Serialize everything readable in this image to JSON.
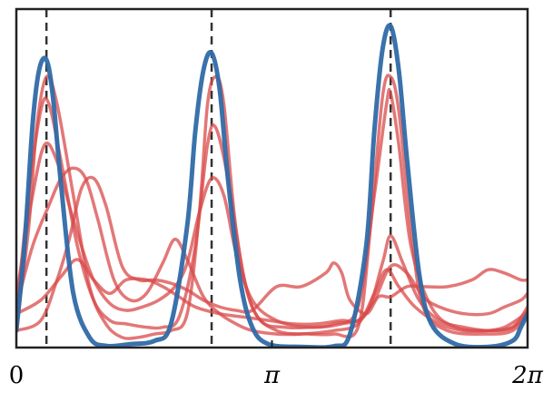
{
  "chart_data": {
    "type": "line",
    "title": "",
    "xlabel": "",
    "ylabel": "",
    "xlim": [
      0,
      6.2832
    ],
    "ylim": [
      0,
      1.0
    ],
    "grid": false,
    "legend": "none",
    "xticks": [
      {
        "value": 0,
        "label": "0"
      },
      {
        "value": 3.1416,
        "label": "π"
      },
      {
        "value": 6.2832,
        "label": "2π"
      }
    ],
    "vlines": [
      0.37,
      2.4,
      4.6
    ],
    "colors": {
      "target": "#2f6aa8",
      "samples": "#d94a4a",
      "vline": "#333333"
    },
    "target": {
      "x": [
        0.0,
        0.1,
        0.2,
        0.28,
        0.37,
        0.45,
        0.55,
        0.7,
        0.9,
        1.1,
        1.4,
        1.7,
        1.9,
        2.1,
        2.2,
        2.3,
        2.4,
        2.5,
        2.6,
        2.75,
        2.9,
        3.1,
        3.5,
        3.9,
        4.1,
        4.3,
        4.4,
        4.5,
        4.6,
        4.7,
        4.8,
        4.95,
        5.1,
        5.4,
        5.8,
        6.1,
        6.2,
        6.2832
      ],
      "y": [
        0.05,
        0.3,
        0.66,
        0.82,
        0.85,
        0.74,
        0.48,
        0.16,
        0.03,
        0.005,
        0.01,
        0.02,
        0.07,
        0.36,
        0.64,
        0.82,
        0.87,
        0.76,
        0.5,
        0.2,
        0.06,
        0.01,
        0.002,
        0.004,
        0.04,
        0.3,
        0.64,
        0.88,
        0.95,
        0.82,
        0.56,
        0.22,
        0.07,
        0.01,
        0.002,
        0.02,
        0.06,
        0.1
      ]
    },
    "series": [
      {
        "x": [
          0.0,
          0.15,
          0.25,
          0.37,
          0.5,
          0.7,
          0.9,
          1.1,
          1.3,
          1.5,
          1.7,
          1.9,
          2.1,
          2.25,
          2.35,
          2.45,
          2.55,
          2.7,
          2.9,
          3.2,
          3.6,
          3.9,
          4.2,
          4.35,
          4.5,
          4.6,
          4.7,
          4.85,
          5.0,
          5.3,
          5.8,
          6.1,
          6.2832
        ],
        "y": [
          0.06,
          0.35,
          0.65,
          0.8,
          0.72,
          0.45,
          0.18,
          0.07,
          0.03,
          0.03,
          0.04,
          0.05,
          0.1,
          0.4,
          0.72,
          0.8,
          0.72,
          0.35,
          0.12,
          0.05,
          0.04,
          0.04,
          0.06,
          0.35,
          0.74,
          0.8,
          0.7,
          0.35,
          0.12,
          0.05,
          0.04,
          0.05,
          0.1
        ]
      },
      {
        "x": [
          0.0,
          0.15,
          0.3,
          0.4,
          0.55,
          0.75,
          0.95,
          1.15,
          1.35,
          1.6,
          1.8,
          2.0,
          2.2,
          2.35,
          2.45,
          2.6,
          2.8,
          3.0,
          3.3,
          3.6,
          3.9,
          4.2,
          4.4,
          4.55,
          4.6,
          4.7,
          4.85,
          5.1,
          5.4,
          5.8,
          6.1,
          6.2832
        ],
        "y": [
          0.1,
          0.45,
          0.7,
          0.72,
          0.55,
          0.3,
          0.14,
          0.08,
          0.07,
          0.06,
          0.06,
          0.09,
          0.3,
          0.6,
          0.65,
          0.5,
          0.2,
          0.08,
          0.06,
          0.06,
          0.07,
          0.12,
          0.45,
          0.72,
          0.75,
          0.6,
          0.3,
          0.12,
          0.06,
          0.05,
          0.06,
          0.12
        ]
      },
      {
        "x": [
          0.0,
          0.2,
          0.35,
          0.5,
          0.65,
          0.8,
          0.95,
          1.15,
          1.35,
          1.55,
          1.75,
          1.95,
          2.1,
          2.25,
          2.4,
          2.55,
          2.7,
          2.9,
          3.2,
          3.6,
          4.0,
          4.3,
          4.5,
          4.6,
          4.75,
          4.95,
          5.2,
          5.5,
          5.8,
          6.1,
          6.2832
        ],
        "y": [
          0.15,
          0.45,
          0.6,
          0.55,
          0.42,
          0.3,
          0.2,
          0.13,
          0.11,
          0.12,
          0.14,
          0.18,
          0.25,
          0.4,
          0.5,
          0.45,
          0.28,
          0.14,
          0.08,
          0.06,
          0.07,
          0.1,
          0.25,
          0.33,
          0.25,
          0.14,
          0.08,
          0.06,
          0.05,
          0.06,
          0.1
        ]
      },
      {
        "x": [
          0.0,
          0.2,
          0.4,
          0.55,
          0.7,
          0.85,
          1.0,
          1.2,
          1.4,
          1.6,
          1.8,
          1.95,
          2.1,
          2.3,
          2.5,
          2.7,
          2.9,
          3.2,
          3.5,
          3.9,
          4.2,
          4.4,
          4.55,
          4.7,
          4.9,
          5.2,
          5.5,
          5.8,
          6.0,
          6.2,
          6.2832
        ],
        "y": [
          0.12,
          0.3,
          0.42,
          0.5,
          0.53,
          0.5,
          0.38,
          0.2,
          0.14,
          0.16,
          0.25,
          0.32,
          0.26,
          0.15,
          0.1,
          0.07,
          0.05,
          0.04,
          0.04,
          0.05,
          0.07,
          0.16,
          0.23,
          0.18,
          0.12,
          0.07,
          0.05,
          0.05,
          0.06,
          0.09,
          0.11
        ]
      },
      {
        "x": [
          0.0,
          0.3,
          0.5,
          0.65,
          0.8,
          0.95,
          1.1,
          1.3,
          1.5,
          1.7,
          1.9,
          2.1,
          2.3,
          2.5,
          2.7,
          2.9,
          3.2,
          3.5,
          3.8,
          3.9,
          4.0,
          4.1,
          4.3,
          4.45,
          4.6,
          4.8,
          5.0,
          5.3,
          5.6,
          5.8,
          6.0,
          6.2,
          6.2832
        ],
        "y": [
          0.05,
          0.08,
          0.2,
          0.32,
          0.47,
          0.5,
          0.42,
          0.24,
          0.2,
          0.2,
          0.19,
          0.17,
          0.14,
          0.12,
          0.11,
          0.11,
          0.18,
          0.18,
          0.22,
          0.25,
          0.22,
          0.14,
          0.1,
          0.15,
          0.15,
          0.18,
          0.18,
          0.18,
          0.2,
          0.23,
          0.22,
          0.2,
          0.2
        ]
      },
      {
        "x": [
          0.0,
          0.3,
          0.55,
          0.75,
          0.95,
          1.15,
          1.35,
          1.6,
          1.8,
          2.0,
          2.2,
          2.5,
          2.8,
          3.1,
          3.4,
          3.7,
          4.0,
          4.2,
          4.4,
          4.6,
          4.8,
          5.0,
          5.2,
          5.5,
          5.8,
          6.0,
          6.2,
          6.2832
        ],
        "y": [
          0.1,
          0.14,
          0.21,
          0.26,
          0.2,
          0.16,
          0.2,
          0.2,
          0.18,
          0.15,
          0.12,
          0.1,
          0.09,
          0.08,
          0.07,
          0.07,
          0.08,
          0.08,
          0.14,
          0.24,
          0.22,
          0.15,
          0.12,
          0.1,
          0.1,
          0.12,
          0.14,
          0.16
        ]
      }
    ]
  }
}
